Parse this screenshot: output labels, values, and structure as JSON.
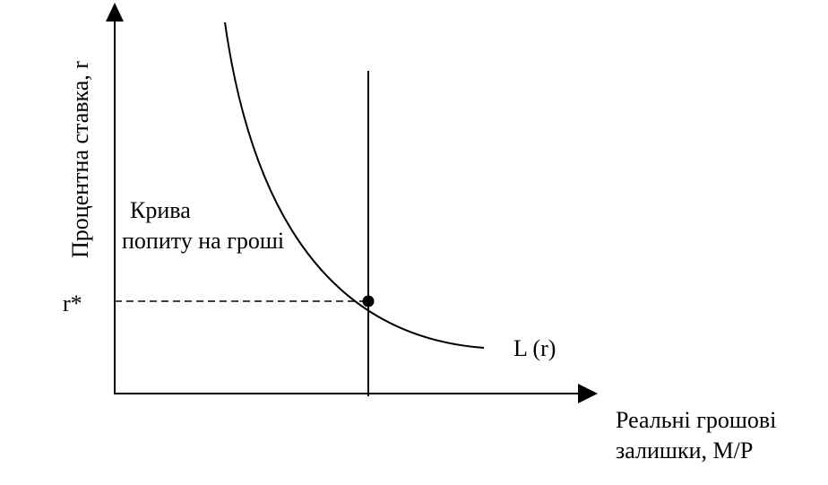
{
  "diagram": {
    "y_axis_label": "Процентна ставка, r",
    "x_axis_label": [
      "Реальні грошові",
      "залишки, M/P"
    ],
    "curve_label": [
      "Крива",
      "попиту на гроші"
    ],
    "curve_name": "L (r)",
    "equilibrium_rate_label": "r*",
    "colors": {
      "line": "#000000",
      "background": "#ffffff"
    }
  }
}
